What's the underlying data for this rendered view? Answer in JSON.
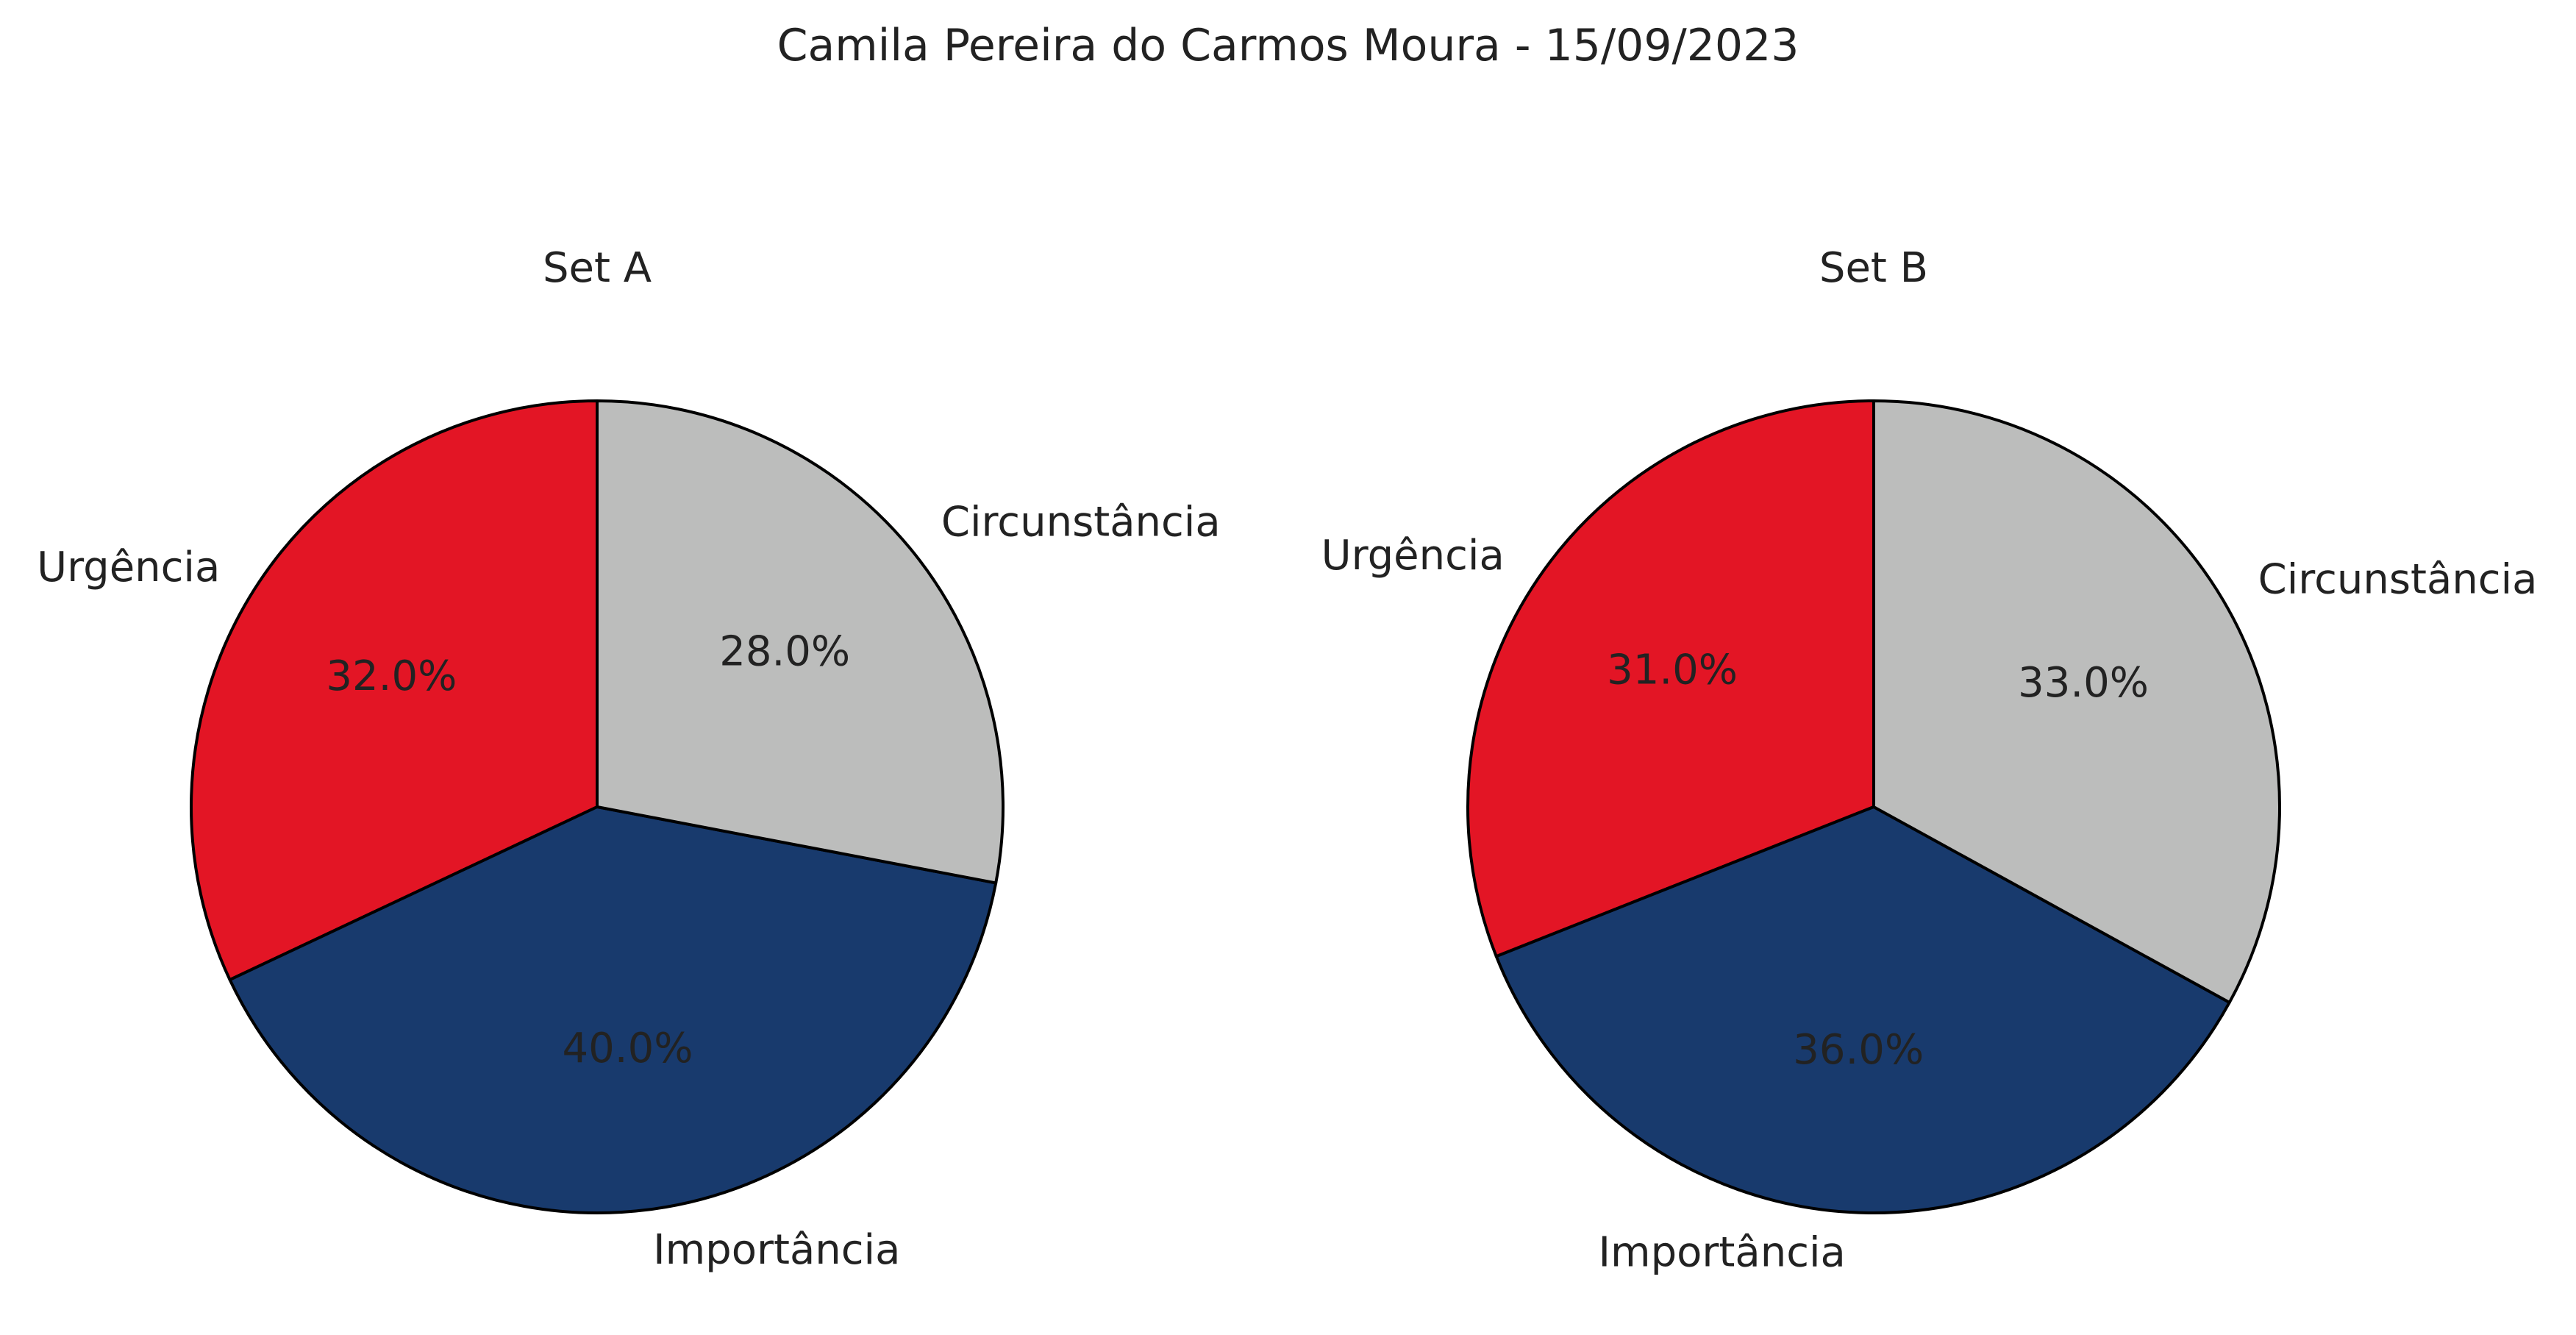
{
  "title": "Camila Pereira do Carmos Moura - 15/09/2023",
  "colors": {
    "Urgência": "#e31525",
    "Importância": "#183a6d",
    "Circunstância": "#bcbdbc"
  },
  "chart_data": [
    {
      "type": "pie",
      "title": "Set A",
      "categories": [
        "Urgência",
        "Importância",
        "Circunstância"
      ],
      "values": [
        32.0,
        40.0,
        28.0
      ],
      "value_labels": [
        "32.0%",
        "40.0%",
        "28.0%"
      ],
      "start_angle": 90,
      "direction": "counterclockwise"
    },
    {
      "type": "pie",
      "title": "Set B",
      "categories": [
        "Urgência",
        "Importância",
        "Circunstância"
      ],
      "values": [
        31.0,
        36.0,
        33.0
      ],
      "value_labels": [
        "31.0%",
        "36.0%",
        "33.0%"
      ],
      "start_angle": 90,
      "direction": "counterclockwise"
    }
  ]
}
